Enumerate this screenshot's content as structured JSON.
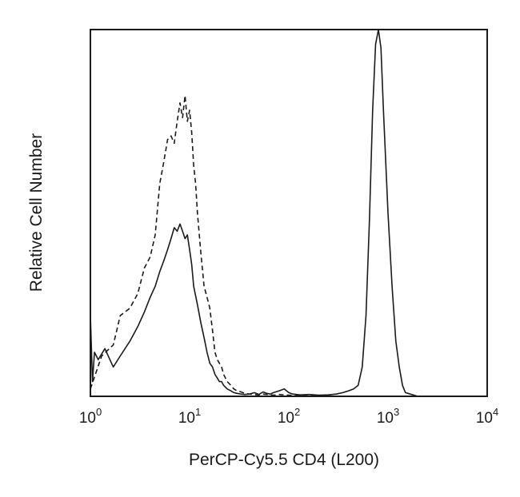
{
  "chart_data": {
    "type": "line",
    "title": "",
    "xlabel": "PerCP-Cy5.5 CD4 (L200)",
    "ylabel": "Relative Cell Number",
    "x_scale": "log",
    "xlim": [
      1,
      10000
    ],
    "ylim": [
      0,
      100
    ],
    "x_ticks": [
      {
        "base": "10",
        "exp": "0",
        "value": 1
      },
      {
        "base": "10",
        "exp": "1",
        "value": 10
      },
      {
        "base": "10",
        "exp": "2",
        "value": 100
      },
      {
        "base": "10",
        "exp": "3",
        "value": 1000
      },
      {
        "base": "10",
        "exp": "4",
        "value": 10000
      }
    ],
    "grid": false,
    "legend": "none",
    "series": [
      {
        "style": "dashed",
        "color": "#1a1a1a",
        "x": [
          1,
          1.3,
          1.7,
          2,
          2.5,
          3,
          3.5,
          4,
          4.5,
          5,
          5.5,
          6,
          6.5,
          7,
          7.5,
          8,
          8.5,
          9,
          9.5,
          10,
          10.5,
          11,
          11.5,
          12,
          13,
          14,
          15,
          16,
          17,
          18,
          19,
          20,
          21,
          22,
          24,
          26,
          28,
          30,
          33,
          36,
          40,
          45,
          50,
          55,
          60,
          70,
          80,
          90,
          100,
          130,
          160,
          200,
          250,
          300,
          400,
          500,
          700,
          1000,
          2000,
          10000
        ],
        "y": [
          2,
          11,
          14,
          22,
          24,
          28,
          35,
          38,
          44,
          58,
          64,
          70,
          71,
          69,
          75,
          80,
          76,
          82,
          75,
          78,
          72,
          63,
          58,
          50,
          39,
          30,
          27,
          24,
          18,
          12,
          10,
          9,
          8,
          6,
          4,
          3,
          2,
          1.5,
          1.2,
          0.8,
          0.6,
          0.5,
          0.4,
          0.6,
          0.5,
          0.3,
          0.5,
          0.4,
          0.3,
          0.2,
          0.1,
          0.2,
          0.1,
          0,
          0,
          0,
          0,
          0,
          0,
          0
        ]
      },
      {
        "style": "solid",
        "color": "#1a1a1a",
        "x": [
          1,
          1.05,
          1.1,
          1.2,
          1.4,
          1.7,
          2,
          2.5,
          3,
          3.5,
          4,
          4.5,
          5,
          5.5,
          6,
          6.5,
          7,
          7.5,
          8,
          8.5,
          9,
          9.5,
          10,
          10.5,
          11,
          12,
          13,
          14,
          15,
          16,
          17,
          18,
          19,
          20,
          21,
          22,
          24,
          26,
          28,
          30,
          33,
          36,
          40,
          45,
          50,
          55,
          60,
          65,
          70,
          80,
          90,
          100,
          110,
          130,
          160,
          200,
          250,
          300,
          350,
          400,
          450,
          500,
          550,
          600,
          650,
          700,
          750,
          800,
          850,
          900,
          1000,
          1100,
          1200,
          1300,
          1400,
          1500,
          2000,
          10000
        ],
        "y": [
          22,
          4,
          12,
          10,
          13,
          8,
          11,
          15,
          19,
          23,
          27,
          30,
          34,
          37,
          40,
          43,
          46,
          45,
          47,
          45,
          43,
          44,
          40,
          36,
          30,
          25,
          20,
          16,
          12,
          9,
          8,
          6,
          5,
          4,
          4,
          3,
          2,
          1.5,
          1,
          0.8,
          0.6,
          0.5,
          0.6,
          1,
          0.5,
          1.2,
          0.8,
          0.6,
          1,
          1.5,
          2,
          1,
          0.6,
          0.4,
          0.5,
          0.3,
          0.4,
          0.6,
          1,
          1.5,
          2,
          3,
          8,
          22,
          48,
          78,
          96,
          100,
          95,
          78,
          50,
          30,
          15,
          8,
          3,
          1,
          0,
          0
        ]
      }
    ]
  }
}
